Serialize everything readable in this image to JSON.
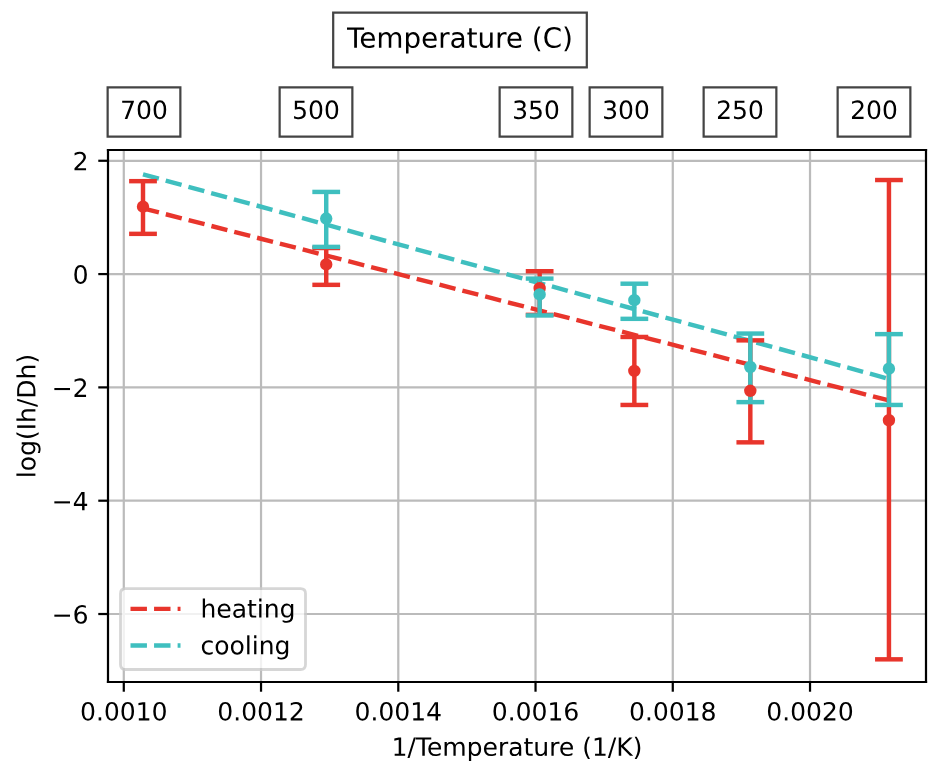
{
  "chart_data": {
    "type": "scatter",
    "xlabel": "1/Temperature (1/K)",
    "ylabel": "log(Ih/Dh)",
    "annotations": [
      "Temperature (C)",
      "700",
      "500",
      "350",
      "300",
      "250",
      "200"
    ],
    "xlim": [
      0.000977,
      0.002169
    ],
    "xticks": [
      {
        "value": 0.001,
        "label": "0.0010"
      },
      {
        "value": 0.0012,
        "label": "0.0012"
      },
      {
        "value": 0.0014,
        "label": "0.0014"
      },
      {
        "value": 0.0016,
        "label": "0.0016"
      },
      {
        "value": 0.0018,
        "label": "0.0018"
      },
      {
        "value": 0.002,
        "label": "0.0020"
      }
    ],
    "ylim": [
      -7.2,
      2.19
    ],
    "yticks": [
      {
        "value": 2,
        "label": "2"
      },
      {
        "value": 0,
        "label": "0"
      },
      {
        "value": -2,
        "label": "−2"
      },
      {
        "value": -4,
        "label": "−4"
      },
      {
        "value": -6,
        "label": "−6"
      }
    ],
    "grid": true,
    "legend": "lower left",
    "series": [
      {
        "color": "#e8352c",
        "marker": "circle",
        "x": [
          0.001028,
          0.001295,
          0.001606,
          0.001744,
          0.001913,
          0.002115
        ],
        "values": [
          1.19,
          0.17,
          -0.25,
          -1.71,
          -2.06,
          -2.58
        ],
        "errors": [
          [
            0.71,
            1.64
          ],
          [
            -0.19,
            0.46
          ],
          [
            -0.72,
            0.05
          ],
          [
            -2.31,
            -1.11
          ],
          [
            -2.97,
            -1.17
          ],
          [
            -6.8,
            1.66
          ]
        ]
      },
      {
        "color": "#3fbfbf",
        "marker": "circle",
        "x": [
          0.001295,
          0.001606,
          0.001744,
          0.001913,
          0.002115
        ],
        "values": [
          0.98,
          -0.36,
          -0.46,
          -1.64,
          -1.67
        ],
        "errors": [
          [
            0.48,
            1.45
          ],
          [
            -0.73,
            -0.08
          ],
          [
            -0.79,
            -0.17
          ],
          [
            -2.26,
            -1.05
          ],
          [
            -2.31,
            -1.06
          ]
        ]
      },
      {
        "type": "line",
        "name": "heating",
        "color": "#e8352c",
        "line_style": "dashed",
        "x": [
          0.001028,
          0.002115
        ],
        "values": [
          1.16,
          -2.23
        ]
      },
      {
        "type": "line",
        "name": "cooling",
        "color": "#3fbfbf",
        "line_style": "dashed",
        "x": [
          0.001028,
          0.002115
        ],
        "values": [
          1.76,
          -1.85
        ]
      }
    ]
  }
}
